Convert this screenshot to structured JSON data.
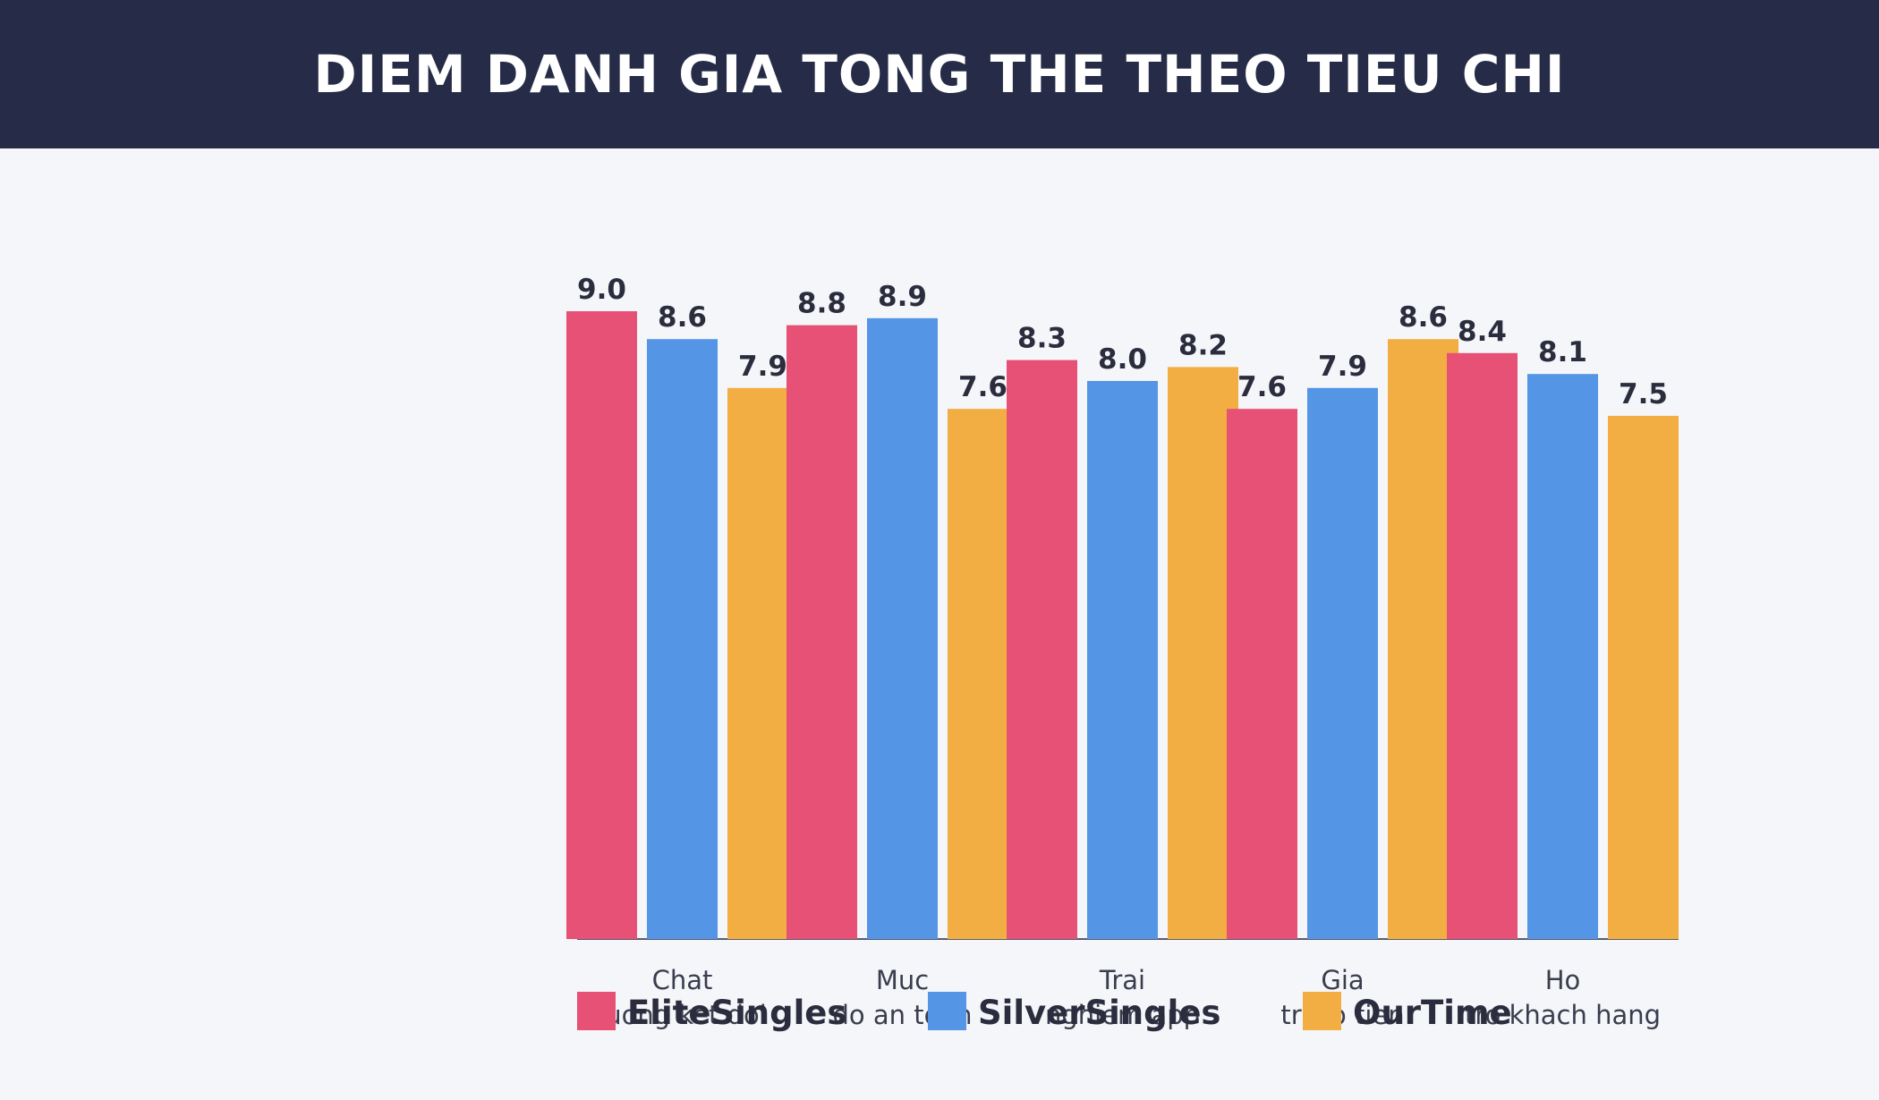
{
  "header": {
    "title": "DIEM DANH GIA TONG THE THEO TIEU CHI"
  },
  "chart_data": {
    "type": "bar",
    "title": "DIEM DANH GIA TONG THE THEO TIEU CHI",
    "xlabel": "",
    "ylabel": "",
    "ylim": [
      0,
      9.6
    ],
    "grid": false,
    "legend_position": "bottom",
    "categories": [
      [
        "Chat",
        "luong ket doi"
      ],
      [
        "Muc",
        "do an toan"
      ],
      [
        "Trai",
        "nghiem app"
      ],
      [
        "Gia",
        "tri so tien"
      ],
      [
        "Ho",
        "tro khach hang"
      ]
    ],
    "series": [
      {
        "name": "EliteSingles",
        "color": "#e65175",
        "values": [
          9.0,
          8.8,
          8.3,
          7.6,
          8.4
        ]
      },
      {
        "name": "SilverSingles",
        "color": "#5495e6",
        "values": [
          8.6,
          8.9,
          8.0,
          7.9,
          8.1
        ]
      },
      {
        "name": "OurTime",
        "color": "#f2ae42",
        "values": [
          7.9,
          7.6,
          8.2,
          8.6,
          7.5
        ]
      }
    ]
  }
}
